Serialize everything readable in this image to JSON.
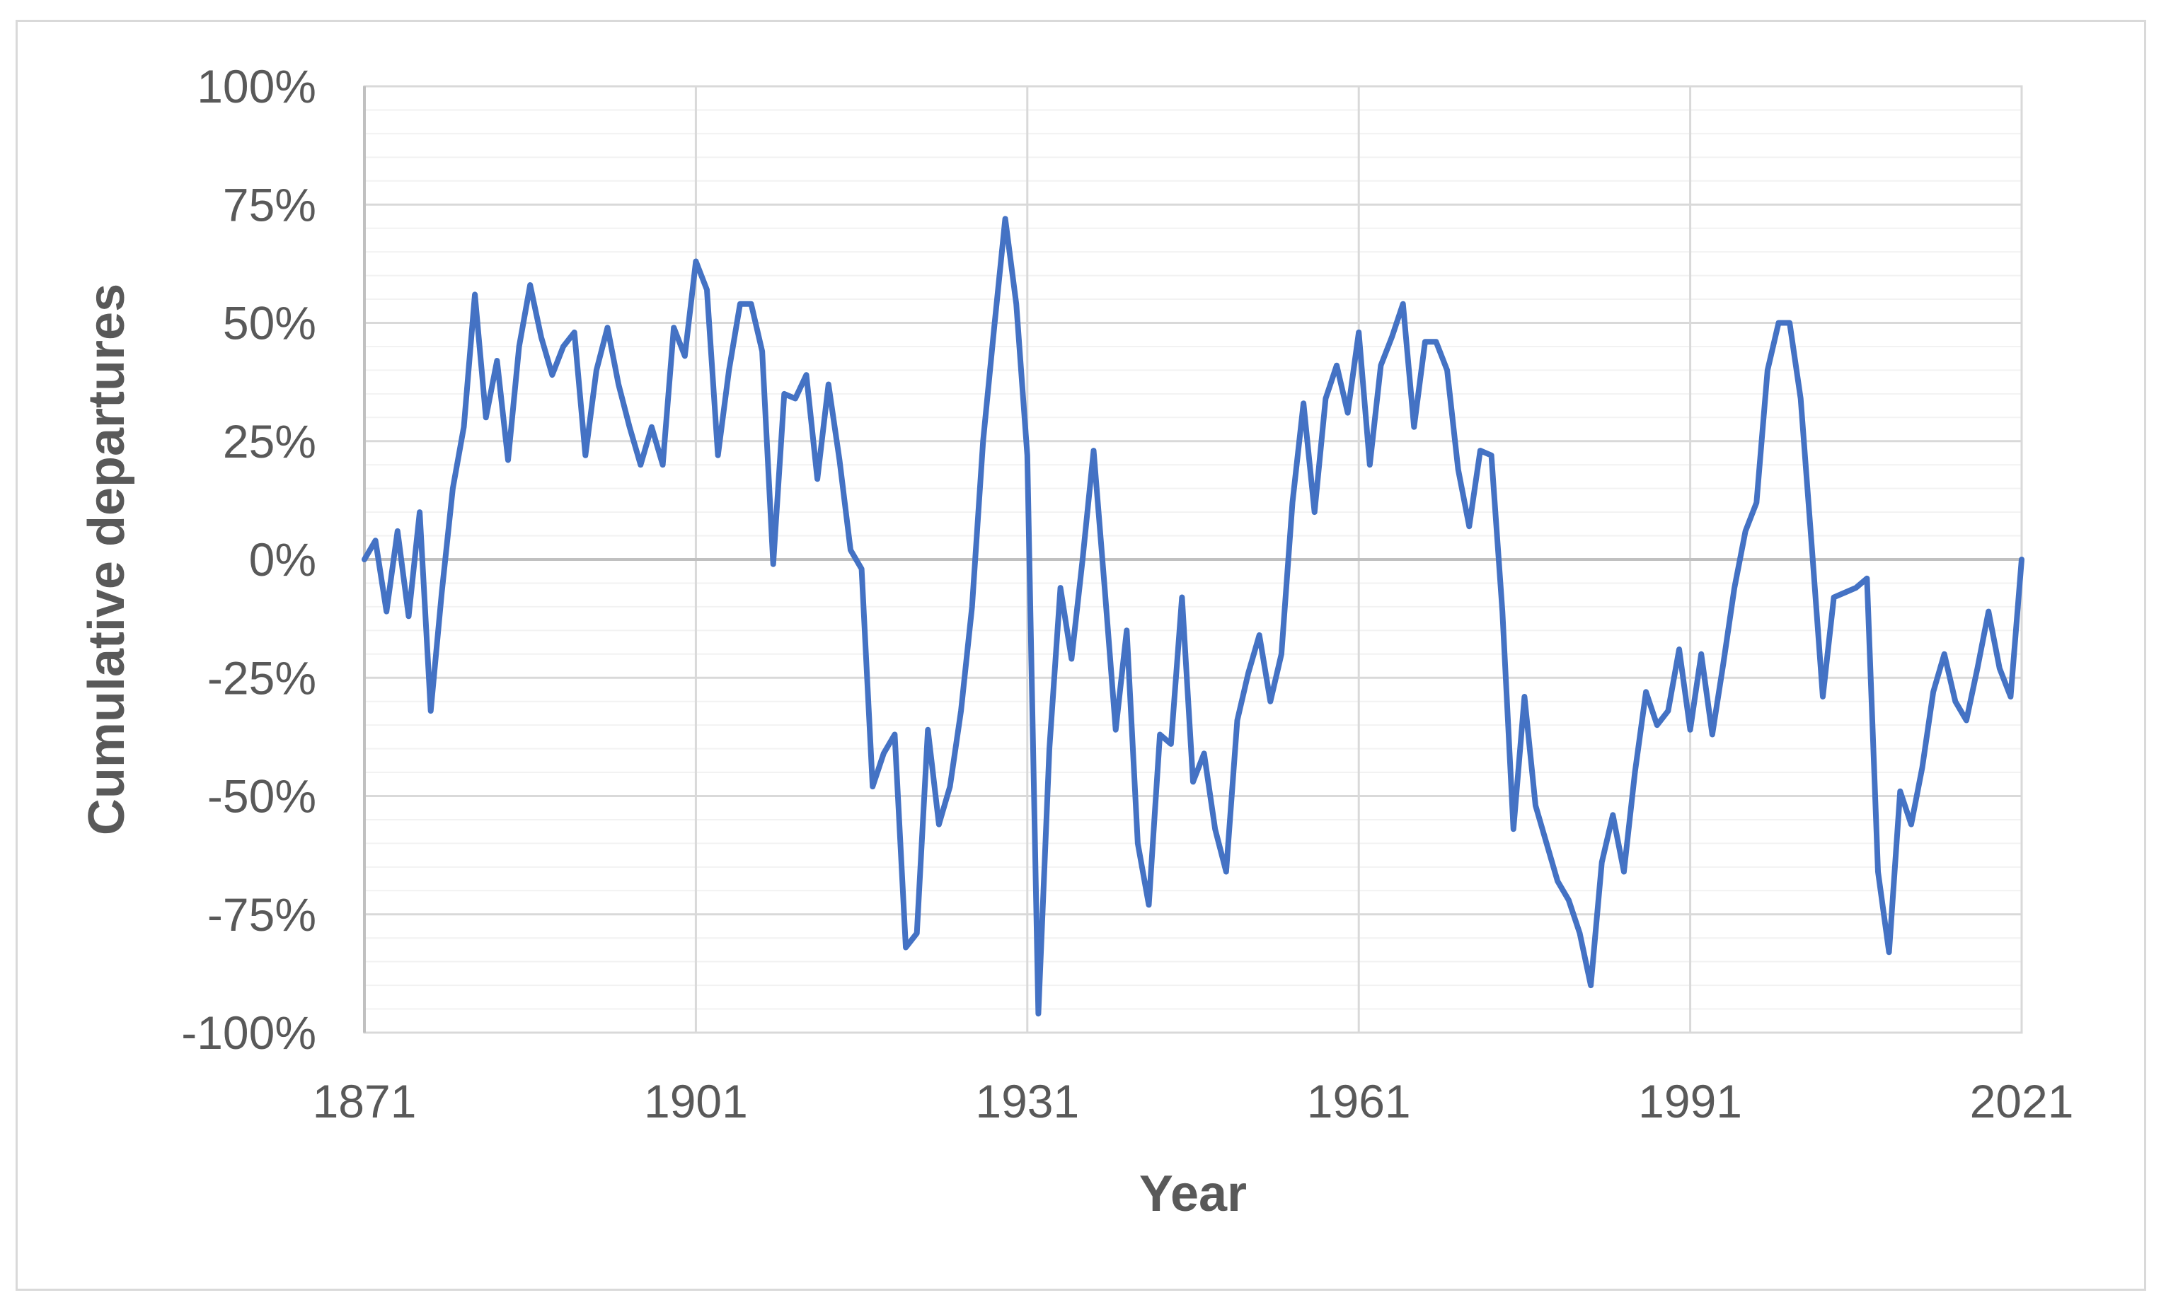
{
  "figure": {
    "background_color": "#FFFFFF",
    "border_color": "#D9D9D9"
  },
  "chart_data": {
    "type": "line",
    "title": "",
    "xlabel": "Year",
    "ylabel": "Cumulative departures",
    "xlim": [
      1871,
      2021
    ],
    "ylim": [
      -100,
      100
    ],
    "x_tick_years": [
      1871,
      1901,
      1931,
      1961,
      1991,
      2021
    ],
    "x_tick_labels": [
      "1871",
      "1901",
      "1931",
      "1961",
      "1991",
      "2021"
    ],
    "y_tick_values": [
      100,
      75,
      50,
      25,
      0,
      -25,
      -50,
      -75,
      -100
    ],
    "y_tick_labels": [
      "100%",
      "75%",
      "50%",
      "25%",
      "0%",
      "-25%",
      "-50%",
      "-75%",
      "-100%"
    ],
    "y_major_step": 25,
    "y_minor_step": 5,
    "grid": {
      "major_color": "#D9D9D9",
      "minor_color": "#F2F2F2",
      "axis_color": "#C0C0C0",
      "horizontal_minor": true,
      "vertical_minor": false
    },
    "legend_position": "none",
    "text_color": "#595959",
    "series": [
      {
        "name": "Cumulative departures",
        "color": "#4472C4",
        "stroke_width": 8,
        "x_start": 1871,
        "x_step": 1,
        "n_points": 151,
        "values": [
          0,
          4,
          -11,
          6,
          -12,
          10,
          -32,
          -7,
          15,
          28,
          56,
          30,
          42,
          21,
          45,
          58,
          47,
          39,
          45,
          48,
          22,
          40,
          49,
          37,
          28,
          20,
          28,
          20,
          49,
          43,
          63,
          57,
          22,
          40,
          54,
          54,
          44,
          -1,
          35,
          34,
          39,
          17,
          37,
          21,
          2,
          -2,
          -48,
          -41,
          -37,
          -82,
          -79,
          -36,
          -56,
          -48,
          -32,
          -10,
          25,
          49,
          72,
          54,
          22,
          -96,
          -40,
          -6,
          -21,
          0,
          23,
          -6,
          -36,
          -15,
          -60,
          -73,
          -37,
          -39,
          -8,
          -47,
          -41,
          -57,
          -66,
          -34,
          -24,
          -16,
          -30,
          -20,
          12,
          33,
          10,
          34,
          41,
          31,
          48,
          20,
          41,
          47,
          54,
          28,
          46,
          46,
          40,
          19,
          7,
          23,
          22,
          -11,
          -57,
          -29,
          -52,
          -60,
          -68,
          -72,
          -79,
          -90,
          -64,
          -54,
          -66,
          -45,
          -28,
          -35,
          -32,
          -19,
          -36,
          -20,
          -37,
          -22,
          -6,
          6,
          12,
          40,
          50,
          50,
          34,
          3,
          -29,
          -8,
          -7,
          -6,
          -4,
          -66,
          -83,
          -49,
          -56,
          -44,
          -28,
          -20,
          -30,
          -34,
          -23,
          -11,
          -23,
          -29,
          0
        ]
      }
    ]
  }
}
